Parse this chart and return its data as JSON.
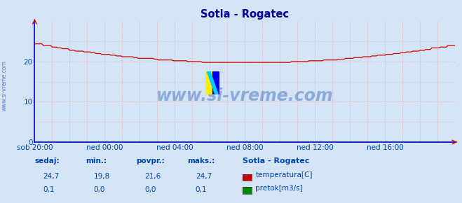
{
  "title": "Sotla - Rogatec",
  "bg_color": "#d4e4f4",
  "plot_bg_color": "#d4e4f4",
  "grid_color_dotted": "#e8a0a0",
  "grid_color_solid": "#ffffff",
  "x_labels": [
    "sob 20:00",
    "ned 00:00",
    "ned 04:00",
    "ned 08:00",
    "ned 12:00",
    "ned 16:00"
  ],
  "x_ticks_idx": [
    0,
    48,
    96,
    144,
    192,
    240
  ],
  "total_points": 289,
  "ylim": [
    0,
    30
  ],
  "yticks": [
    0,
    10,
    20
  ],
  "temp_color": "#cc0000",
  "flow_color": "#008800",
  "spine_color": "#0000cc",
  "watermark_text": "www.si-vreme.com",
  "watermark_color": "#3366bb",
  "sidebar_text": "www.si-vreme.com",
  "sidebar_color": "#3366bb",
  "legend_title": "Sotla - Rogatec",
  "legend_items": [
    "temperatura[C]",
    "pretok[m3/s]"
  ],
  "legend_colors": [
    "#cc0000",
    "#008800"
  ],
  "stats_labels": [
    "sedaj:",
    "min.:",
    "povpr.:",
    "maks.:"
  ],
  "stats_temp": [
    "24,7",
    "19,8",
    "21,6",
    "24,7"
  ],
  "stats_flow": [
    "0,1",
    "0,0",
    "0,0",
    "0,1"
  ],
  "stats_color": "#0044aa",
  "font_color": "#0044aa",
  "title_color": "#000099",
  "logo_yellow": "#ffee00",
  "logo_blue": "#0000ee",
  "logo_cyan": "#00ccff"
}
